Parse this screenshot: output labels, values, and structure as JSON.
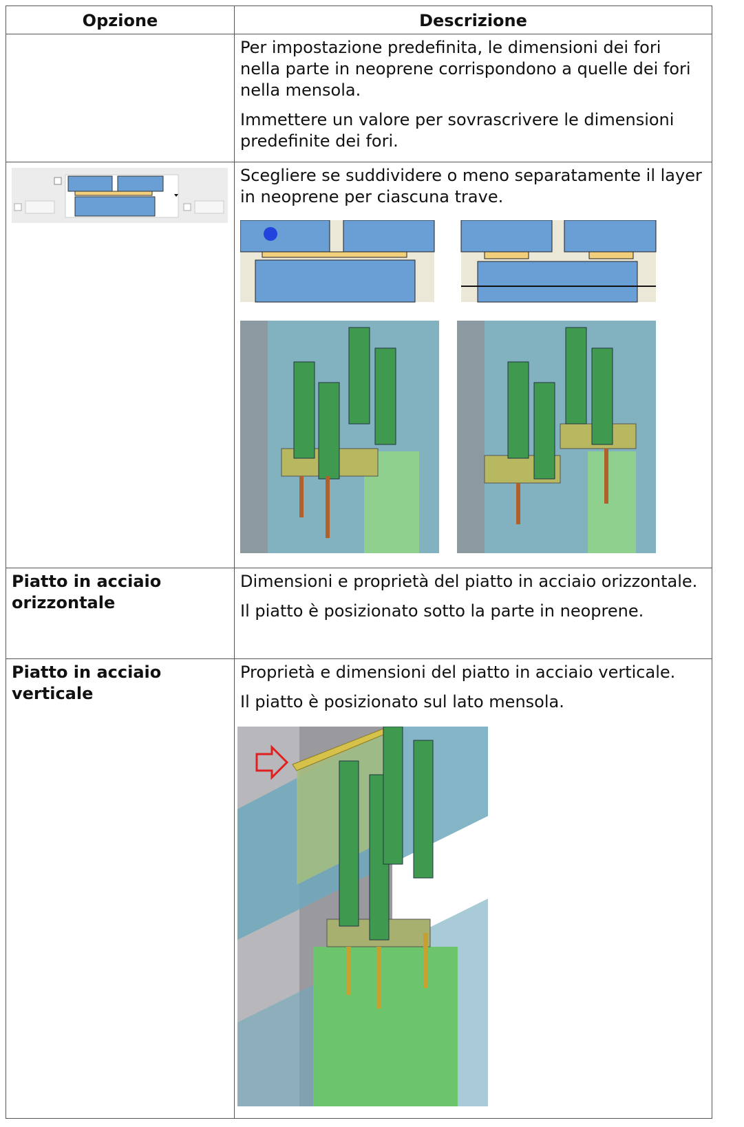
{
  "table": {
    "headers": [
      "Opzione",
      "Descrizione"
    ],
    "rows": [
      {
        "description": [
          "Per impostazione predefinita, le dimensioni dei fori nella parte in neoprene corrispondono a quelle dei fori nella mensola.",
          "Immettere un valore per sovrascrivere le dimensioni predefinite dei fori."
        ]
      },
      {
        "description": [
          "Scegliere se suddividere o meno separatamente il layer in neoprene per ciascuna trave."
        ]
      },
      {
        "option": "Piatto in acciaio orizzontale",
        "description": [
          "Dimensioni e proprietà del piatto in acciaio orizzontale.",
          "Il piatto è posizionato sotto la parte in neoprene."
        ]
      },
      {
        "option": "Piatto in acciaio verticale",
        "description": [
          "Proprietà e dimensioni del piatto in acciaio verticale.",
          "Il piatto è posizionato sul lato mensola."
        ]
      }
    ]
  }
}
